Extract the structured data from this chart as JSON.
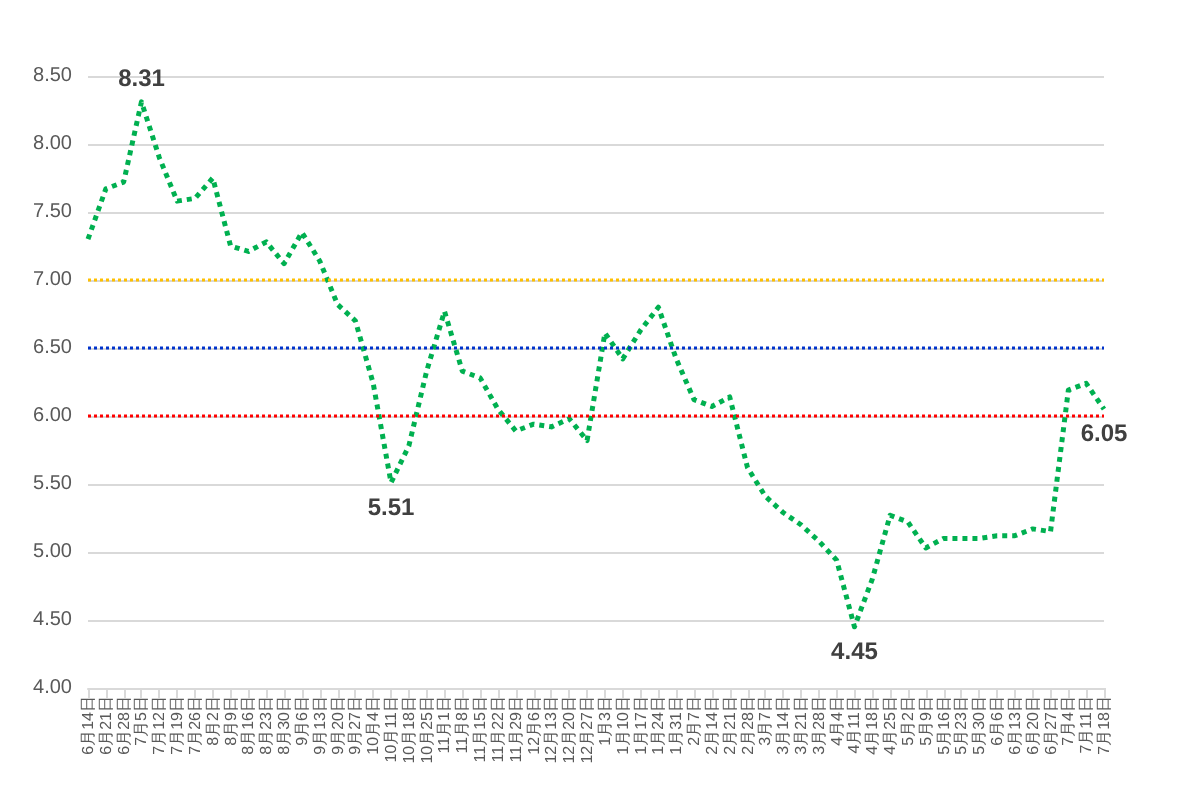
{
  "chart_data": {
    "type": "line",
    "categories": [
      "6月14日",
      "6月21日",
      "6月28日",
      "7月5日",
      "7月12日",
      "7月19日",
      "7月26日",
      "8月2日",
      "8月9日",
      "8月16日",
      "8月23日",
      "8月30日",
      "9月6日",
      "9月13日",
      "9月20日",
      "9月27日",
      "10月4日",
      "10月11日",
      "10月18日",
      "10月25日",
      "11月1日",
      "11月8日",
      "11月15日",
      "11月22日",
      "11月29日",
      "12月6日",
      "12月13日",
      "12月20日",
      "12月27日",
      "1月3日",
      "1月10日",
      "1月17日",
      "1月24日",
      "1月31日",
      "2月7日",
      "2月14日",
      "2月21日",
      "2月28日",
      "3月7日",
      "3月14日",
      "3月21日",
      "3月28日",
      "4月4日",
      "4月11日",
      "4月18日",
      "4月25日",
      "5月2日",
      "5月9日",
      "5月16日",
      "5月23日",
      "5月30日",
      "6月6日",
      "6月13日",
      "6月20日",
      "6月27日",
      "7月4日",
      "7月11日",
      "7月18日"
    ],
    "series": [
      {
        "color": "#00b050",
        "values": [
          7.3,
          7.67,
          7.72,
          8.31,
          7.9,
          7.58,
          7.6,
          7.75,
          7.25,
          7.21,
          7.28,
          7.12,
          7.35,
          7.14,
          6.82,
          6.7,
          6.24,
          5.51,
          5.78,
          6.33,
          6.77,
          6.33,
          6.28,
          6.05,
          5.89,
          5.94,
          5.92,
          5.98,
          5.82,
          6.61,
          6.42,
          6.63,
          6.8,
          6.42,
          6.12,
          6.07,
          6.14,
          5.62,
          5.41,
          5.29,
          5.2,
          5.08,
          4.94,
          4.45,
          4.8,
          5.27,
          5.22,
          5.03,
          5.1,
          5.1,
          5.1,
          5.12,
          5.12,
          5.17,
          5.15,
          6.19,
          6.24,
          6.05
        ],
        "value_labels": [
          null,
          null,
          null,
          "8.31",
          null,
          null,
          null,
          null,
          null,
          null,
          null,
          null,
          null,
          null,
          null,
          null,
          null,
          "5.51",
          null,
          null,
          null,
          null,
          null,
          null,
          null,
          null,
          null,
          null,
          null,
          null,
          null,
          null,
          null,
          null,
          null,
          null,
          null,
          null,
          null,
          null,
          null,
          null,
          null,
          "4.45",
          null,
          null,
          null,
          null,
          null,
          null,
          null,
          null,
          null,
          null,
          null,
          null,
          null,
          "6.05"
        ]
      }
    ],
    "ylim": [
      4,
      8.5
    ],
    "yticks": [
      {
        "value": 4,
        "label": "4.00"
      },
      {
        "value": 4.5,
        "label": "4.50"
      },
      {
        "value": 5,
        "label": "5.00"
      },
      {
        "value": 5.5,
        "label": "5.50"
      },
      {
        "value": 6,
        "label": "6.00"
      },
      {
        "value": 6.5,
        "label": "6.50"
      },
      {
        "value": 7,
        "label": "7.00"
      },
      {
        "value": 7.5,
        "label": "7.50"
      },
      {
        "value": 8,
        "label": "8.00"
      },
      {
        "value": 8.5,
        "label": "8.50"
      }
    ],
    "ref_lines": [
      {
        "axis": "y",
        "value": 7,
        "color": "#ffc000",
        "line_style": "dotted"
      },
      {
        "axis": "y",
        "value": 6.5,
        "color": "#0033cc",
        "line_style": "dotted"
      },
      {
        "axis": "y",
        "value": 6,
        "color": "#ff0000",
        "line_style": "dotted"
      }
    ],
    "grid": "y",
    "marker": "none",
    "line_style": "dotted"
  }
}
